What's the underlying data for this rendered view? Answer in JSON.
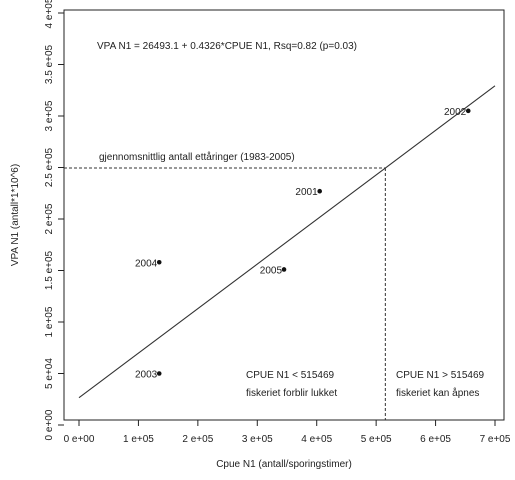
{
  "chart_data": {
    "type": "scatter",
    "title": "",
    "xlabel": "Cpue N1 (antall/sporingstimer)",
    "ylabel": "VPA N1 (antall*1*10^6)",
    "xlim": [
      0,
      700000
    ],
    "ylim": [
      0,
      400000
    ],
    "grid": false,
    "x_ticks": [
      {
        "value": 0,
        "label": "0 e+00"
      },
      {
        "value": 100000,
        "label": "1 e+05"
      },
      {
        "value": 200000,
        "label": "2 e+05"
      },
      {
        "value": 300000,
        "label": "3 e+05"
      },
      {
        "value": 400000,
        "label": "4 e+05"
      },
      {
        "value": 500000,
        "label": "5 e+05"
      },
      {
        "value": 600000,
        "label": "6 e+05"
      },
      {
        "value": 700000,
        "label": "7 e+05"
      }
    ],
    "y_ticks": [
      {
        "value": 0,
        "label": "0 e+00"
      },
      {
        "value": 50000,
        "label": "5 e+04"
      },
      {
        "value": 100000,
        "label": "1 e+05"
      },
      {
        "value": 150000,
        "label": "1.5 e+05"
      },
      {
        "value": 200000,
        "label": "2 e+05"
      },
      {
        "value": 250000,
        "label": "2.5 e+05"
      },
      {
        "value": 300000,
        "label": "3 e+05"
      },
      {
        "value": 350000,
        "label": "3.5 e+05"
      },
      {
        "value": 400000,
        "label": "4 e+05"
      }
    ],
    "points": [
      {
        "label": "2002",
        "x": 655000,
        "y": 305000
      },
      {
        "label": "2001",
        "x": 405000,
        "y": 227000
      },
      {
        "label": "2004",
        "x": 135000,
        "y": 158000
      },
      {
        "label": "2005",
        "x": 345000,
        "y": 151000
      },
      {
        "label": "2003",
        "x": 135000,
        "y": 50000
      }
    ],
    "regression": {
      "intercept": 26493.1,
      "slope": 0.4326,
      "x_range": [
        0,
        700000
      ],
      "equation_text": "VPA N1 = 26493.1 + 0.4326*CPUE N1, Rsq=0.82 (p=0.03)"
    },
    "reference_lines": {
      "horizontal_y": 249480,
      "horizontal_label": "gjennomsnittlig antall ettåringer (1983-2005)",
      "vertical_x": 515469
    },
    "zones": [
      {
        "line1": "CPUE N1 < 515469",
        "line2": "fiskeriet forblir lukket"
      },
      {
        "line1": "CPUE N1 > 515469",
        "line2": "fiskeriet kan åpnes"
      }
    ]
  }
}
